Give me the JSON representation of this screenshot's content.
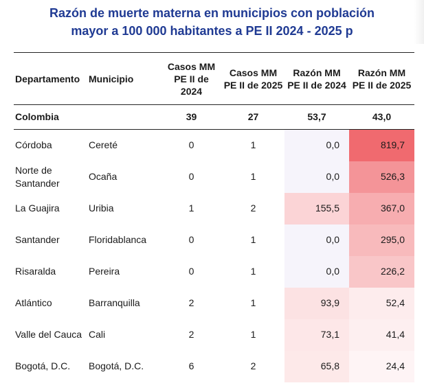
{
  "title": {
    "line1": "Razón de muerte materna en municipios con población",
    "line2": "mayor a 100 000 habitantes a PE II 2024 - 2025 p"
  },
  "headers": {
    "departamento": "Departamento",
    "municipio": "Municipio",
    "casos_2024": "Casos MM PE II de 2024",
    "casos_2025": "Casos MM PE II de 2025",
    "razon_2024": "Razón MM PE II de 2024",
    "razon_2025": "Razón MM PE II de 2025"
  },
  "total": {
    "departamento": "Colombia",
    "municipio": "",
    "casos_2024": "39",
    "casos_2025": "27",
    "razon_2024": "53,7",
    "razon_2025": "43,0"
  },
  "rows": [
    {
      "departamento": "Córdoba",
      "municipio": "Cereté",
      "casos_2024": "0",
      "casos_2025": "1",
      "razon_2024": "0,0",
      "razon_2025": "819,7"
    },
    {
      "departamento": "Norte de Santander",
      "municipio": "Ocaña",
      "casos_2024": "0",
      "casos_2025": "1",
      "razon_2024": "0,0",
      "razon_2025": "526,3"
    },
    {
      "departamento": "La Guajira",
      "municipio": "Uribia",
      "casos_2024": "1",
      "casos_2025": "2",
      "razon_2024": "155,5",
      "razon_2025": "367,0"
    },
    {
      "departamento": "Santander",
      "municipio": "Floridablanca",
      "casos_2024": "0",
      "casos_2025": "1",
      "razon_2024": "0,0",
      "razon_2025": "295,0"
    },
    {
      "departamento": "Risaralda",
      "municipio": "Pereira",
      "casos_2024": "0",
      "casos_2025": "1",
      "razon_2024": "0,0",
      "razon_2025": "226,2"
    },
    {
      "departamento": "Atlántico",
      "municipio": "Barranquilla",
      "casos_2024": "2",
      "casos_2025": "1",
      "razon_2024": "93,9",
      "razon_2025": "52,4"
    },
    {
      "departamento": "Valle del Cauca",
      "municipio": "Cali",
      "casos_2024": "2",
      "casos_2025": "1",
      "razon_2024": "73,1",
      "razon_2025": "41,4"
    },
    {
      "departamento": "Bogotá, D.C.",
      "municipio": "Bogotá, D.C.",
      "casos_2024": "6",
      "casos_2025": "2",
      "razon_2024": "65,8",
      "razon_2025": "24,4"
    }
  ],
  "colors": {
    "title": "#1f3a93",
    "heat_max": "#f06a6f",
    "heat_min": "#ffffff"
  }
}
